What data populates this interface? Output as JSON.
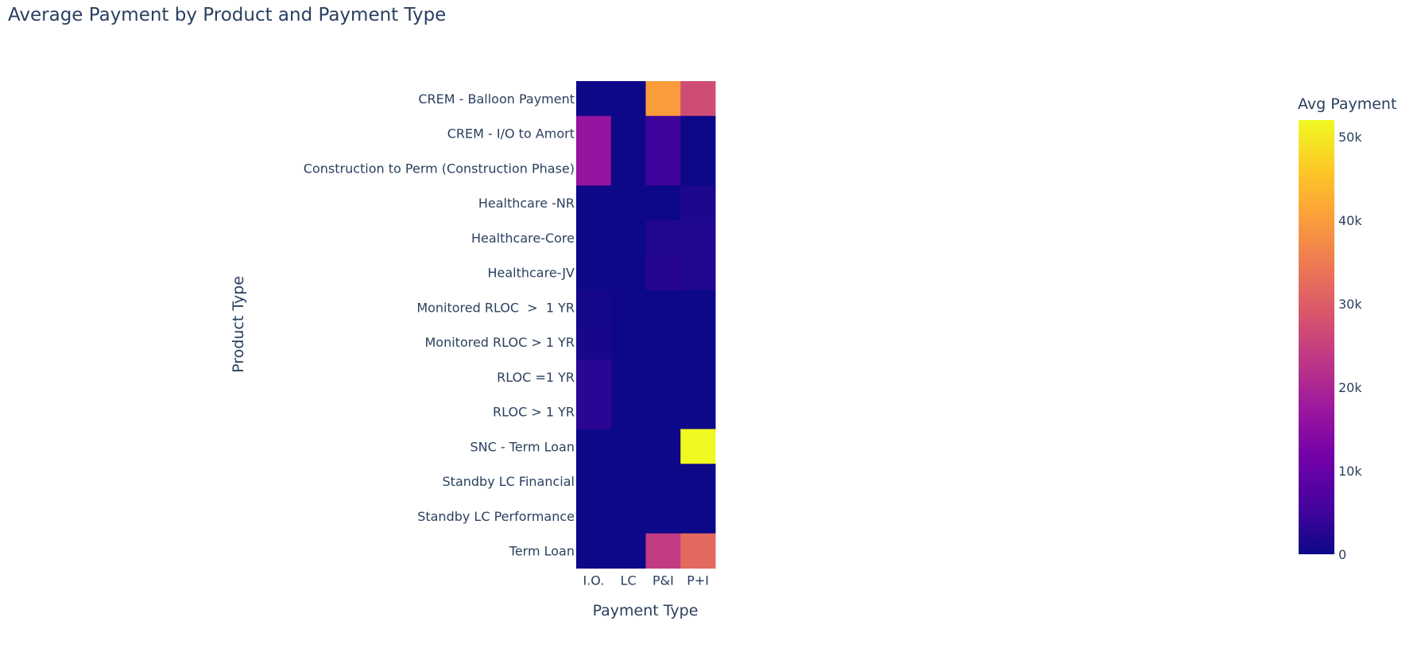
{
  "chart_data": {
    "type": "heatmap",
    "title": "Average Payment by Product and Payment Type",
    "xlabel": "Payment Type",
    "ylabel": "Product Type",
    "x": [
      "I.O.",
      "LC",
      "P&I",
      "P+I"
    ],
    "y": [
      "CREM - Balloon Payment",
      "CREM - I/O to Amort",
      "Construction to Perm (Construction Phase)",
      "Healthcare -NR",
      "Healthcare-Core",
      "Healthcare-JV",
      "Monitored RLOC  >  1 YR",
      "Monitored RLOC > 1 YR",
      "RLOC =1 YR",
      "RLOC > 1 YR",
      "SNC - Term Loan",
      "Standby LC Financial",
      "Standby LC Performance",
      "Term Loan"
    ],
    "z": [
      [
        0,
        0,
        40000,
        27000
      ],
      [
        16500,
        0,
        5000,
        0
      ],
      [
        16500,
        0,
        5000,
        0
      ],
      [
        0,
        0,
        0,
        1500
      ],
      [
        0,
        0,
        2000,
        2000
      ],
      [
        0,
        0,
        2500,
        2000
      ],
      [
        800,
        0,
        0,
        0
      ],
      [
        1000,
        0,
        0,
        0
      ],
      [
        3000,
        0,
        0,
        0
      ],
      [
        3000,
        0,
        0,
        0
      ],
      [
        0,
        0,
        0,
        52000
      ],
      [
        0,
        0,
        0,
        0
      ],
      [
        0,
        0,
        0,
        0
      ],
      [
        0,
        0,
        24000,
        32000
      ]
    ],
    "colorbar": {
      "title": "Avg Payment",
      "zmin": 0,
      "zmax": 52000,
      "ticks": [
        0,
        10000,
        20000,
        30000,
        40000,
        50000
      ],
      "tick_labels": [
        "0",
        "10k",
        "20k",
        "30k",
        "40k",
        "50k"
      ]
    },
    "colorscale": [
      "#0d0887",
      "#46039f",
      "#7201a8",
      "#9c179e",
      "#bd3786",
      "#d8576b",
      "#ed7953",
      "#fb9f3a",
      "#fdca26",
      "#f0f921"
    ]
  }
}
